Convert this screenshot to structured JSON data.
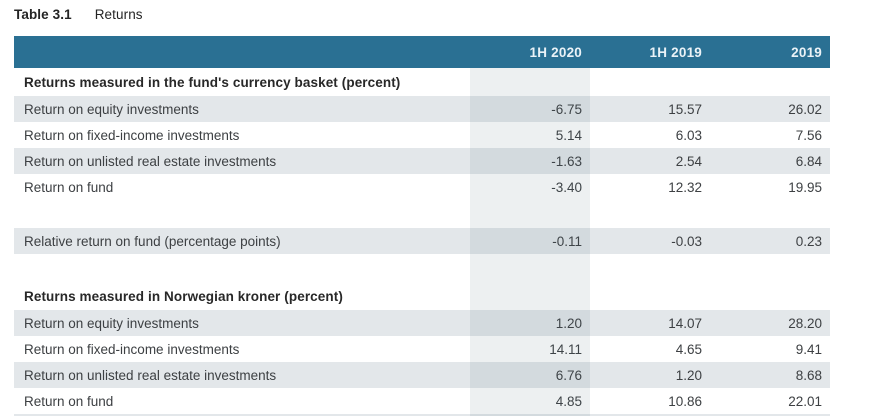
{
  "title": {
    "number": "Table 3.1",
    "name": "Returns"
  },
  "table": {
    "columns": [
      "1H 2020",
      "1H 2019",
      "2019"
    ],
    "highlighted_column": "1H 2020",
    "header_color": "#2a7093",
    "zebra_color": "#e3e7ea",
    "rows": [
      {
        "type": "section",
        "zebra": false,
        "label": "Returns measured in the fund's currency basket (percent)"
      },
      {
        "type": "data",
        "zebra": true,
        "label": "Return on equity investments",
        "values": [
          "-6.75",
          "15.57",
          "26.02"
        ]
      },
      {
        "type": "data",
        "zebra": false,
        "label": "Return on fixed-income investments",
        "values": [
          "5.14",
          "6.03",
          "7.56"
        ]
      },
      {
        "type": "data",
        "zebra": true,
        "label": "Return on unlisted real estate investments",
        "values": [
          "-1.63",
          "2.54",
          "6.84"
        ]
      },
      {
        "type": "data",
        "zebra": false,
        "label": "Return on fund",
        "values": [
          "-3.40",
          "12.32",
          "19.95"
        ]
      },
      {
        "type": "spacer",
        "zebra": false,
        "label": ""
      },
      {
        "type": "data",
        "zebra": true,
        "label": "Relative return on fund (percentage points)",
        "values": [
          "-0.11",
          "-0.03",
          "0.23"
        ]
      },
      {
        "type": "spacer",
        "zebra": false,
        "label": ""
      },
      {
        "type": "section",
        "zebra": false,
        "label": "Returns measured in Norwegian kroner (percent)"
      },
      {
        "type": "data",
        "zebra": true,
        "label": "Return on equity investments",
        "values": [
          "1.20",
          "14.07",
          "28.20"
        ]
      },
      {
        "type": "data",
        "zebra": false,
        "label": "Return on fixed-income investments",
        "values": [
          "14.11",
          "4.65",
          "9.41"
        ]
      },
      {
        "type": "data",
        "zebra": true,
        "label": "Return on unlisted real estate investments",
        "values": [
          "6.76",
          "1.20",
          "8.68"
        ]
      },
      {
        "type": "data",
        "zebra": false,
        "label": "Return on fund",
        "values": [
          "4.85",
          "10.86",
          "22.01"
        ]
      }
    ]
  }
}
